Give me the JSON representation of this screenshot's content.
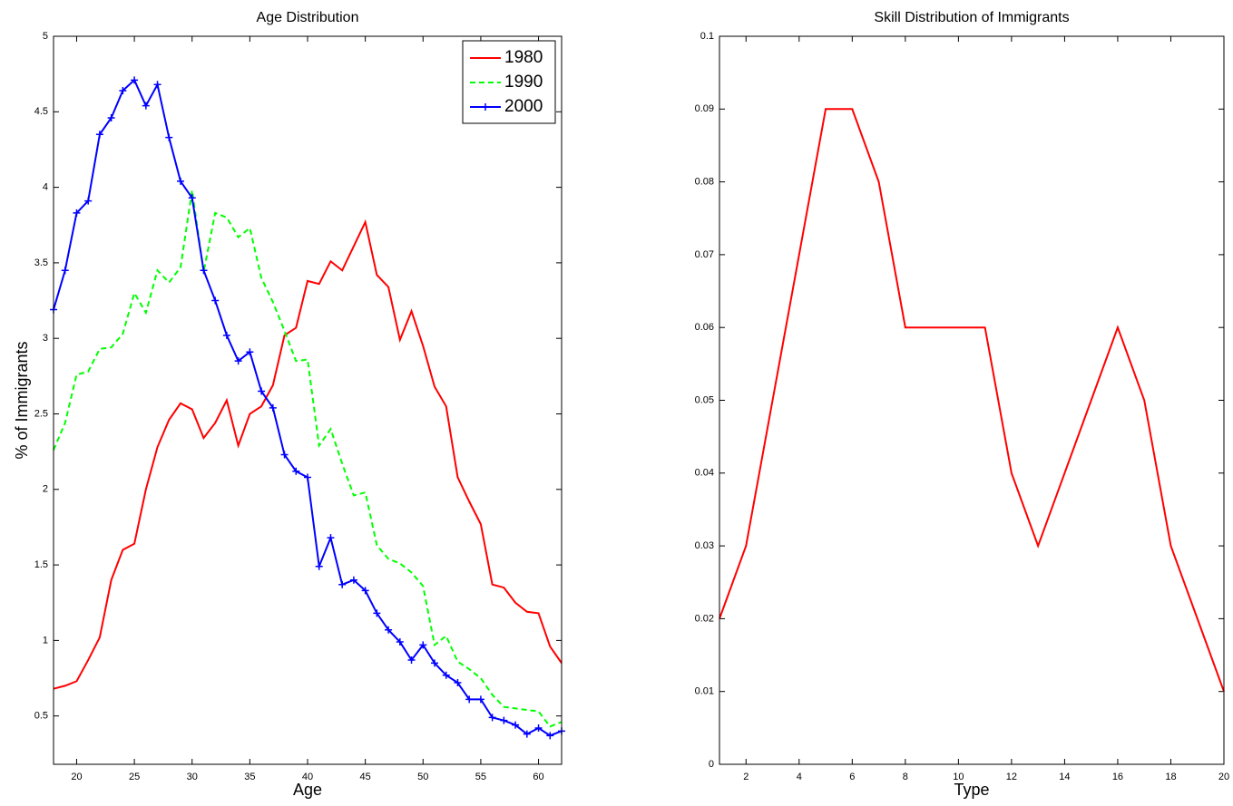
{
  "chart_data": [
    {
      "type": "line",
      "title": "Age Distribution",
      "xlabel": "Age",
      "ylabel": "% of Immigrants",
      "x": [
        18,
        19,
        20,
        21,
        22,
        23,
        24,
        25,
        26,
        27,
        28,
        29,
        30,
        31,
        32,
        33,
        34,
        35,
        36,
        37,
        38,
        39,
        40,
        41,
        42,
        43,
        44,
        45,
        46,
        47,
        48,
        49,
        50,
        51,
        52,
        53,
        54,
        55,
        56,
        57,
        58,
        59,
        60,
        61,
        62
      ],
      "series": [
        {
          "name": "1980",
          "color": "#ff0000",
          "dash": false,
          "marker": "none",
          "values": [
            0.68,
            0.7,
            0.73,
            0.87,
            1.02,
            1.4,
            1.6,
            1.64,
            2.0,
            2.28,
            2.46,
            2.57,
            2.53,
            2.34,
            2.44,
            2.59,
            2.29,
            2.5,
            2.55,
            2.69,
            3.02,
            3.07,
            3.38,
            3.36,
            3.51,
            3.45,
            3.61,
            3.77,
            3.42,
            3.34,
            2.99,
            3.18,
            2.95,
            2.68,
            2.55,
            2.08,
            1.92,
            1.77,
            1.37,
            1.35,
            1.25,
            1.19,
            1.18,
            0.96,
            0.85
          ]
        },
        {
          "name": "1990",
          "color": "#00ff00",
          "dash": true,
          "marker": "none",
          "values": [
            2.26,
            2.44,
            2.76,
            2.78,
            2.93,
            2.94,
            3.03,
            3.3,
            3.17,
            3.45,
            3.37,
            3.47,
            3.98,
            3.44,
            3.83,
            3.8,
            3.67,
            3.73,
            3.4,
            3.24,
            3.05,
            2.85,
            2.86,
            2.29,
            2.4,
            2.17,
            1.96,
            1.98,
            1.63,
            1.54,
            1.51,
            1.45,
            1.36,
            0.97,
            1.03,
            0.86,
            0.81,
            0.75,
            0.64,
            0.56,
            0.55,
            0.54,
            0.53,
            0.43,
            0.46
          ]
        },
        {
          "name": "2000",
          "color": "#0000ff",
          "dash": false,
          "marker": "+",
          "values": [
            3.19,
            3.45,
            3.83,
            3.91,
            4.35,
            4.46,
            4.64,
            4.71,
            4.54,
            4.68,
            4.33,
            4.04,
            3.93,
            3.45,
            3.25,
            3.02,
            2.85,
            2.91,
            2.65,
            2.54,
            2.23,
            2.12,
            2.08,
            1.49,
            1.68,
            1.37,
            1.4,
            1.33,
            1.18,
            1.07,
            0.99,
            0.87,
            0.97,
            0.85,
            0.77,
            0.72,
            0.61,
            0.61,
            0.49,
            0.47,
            0.44,
            0.38,
            0.42,
            0.37,
            0.4
          ]
        }
      ],
      "xlim": [
        18,
        62
      ],
      "xticks": [
        20,
        25,
        30,
        35,
        40,
        45,
        50,
        55,
        60
      ],
      "ylim": [
        0.18,
        5
      ],
      "yticks": [
        0.5,
        1,
        1.5,
        2,
        2.5,
        3,
        3.5,
        4,
        4.5,
        5
      ],
      "legend": "upper right"
    },
    {
      "type": "line",
      "title": "Skill Distribution of Immigrants",
      "xlabel": "Type",
      "x": [
        1,
        2,
        3,
        4,
        5,
        6,
        7,
        8,
        9,
        10,
        11,
        12,
        13,
        14,
        15,
        16,
        17,
        18,
        19,
        20
      ],
      "values": [
        0.02,
        0.03,
        0.05,
        0.07,
        0.09,
        0.09,
        0.08,
        0.06,
        0.06,
        0.06,
        0.06,
        0.04,
        0.03,
        0.04,
        0.05,
        0.06,
        0.05,
        0.03,
        0.02,
        0.01
      ],
      "color": "#ff0000",
      "xlim": [
        1,
        20
      ],
      "xticks": [
        2,
        4,
        6,
        8,
        10,
        12,
        14,
        16,
        18,
        20
      ],
      "ylim": [
        0,
        0.1
      ],
      "yticks": [
        0,
        0.01,
        0.02,
        0.03,
        0.04,
        0.05,
        0.06,
        0.07,
        0.08,
        0.09,
        0.1
      ]
    }
  ]
}
